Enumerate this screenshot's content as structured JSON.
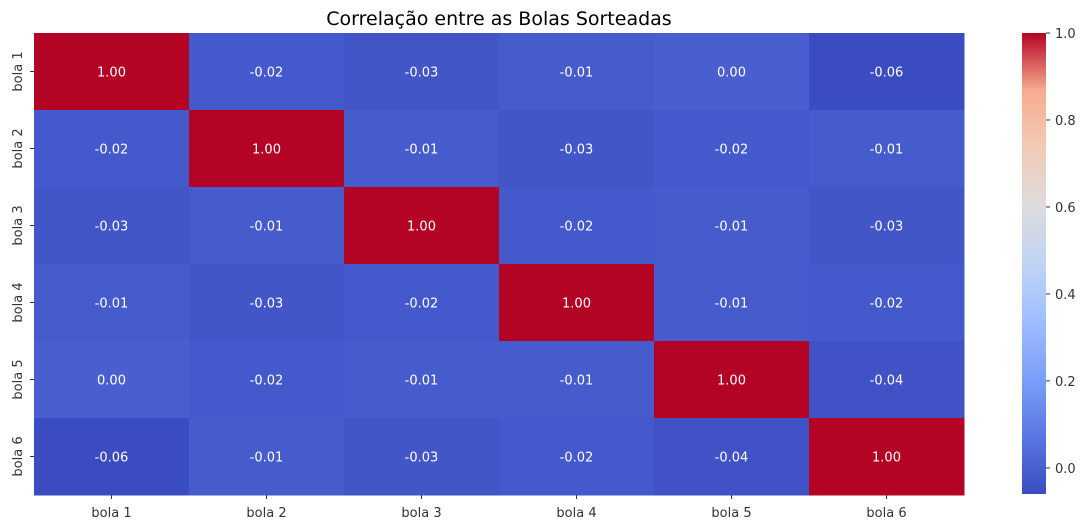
{
  "chart_data": {
    "type": "heatmap",
    "title": "Correlação entre as Bolas Sorteadas",
    "xlabel": "",
    "ylabel": "",
    "x_categories": [
      "bola 1",
      "bola 2",
      "bola 3",
      "bola 4",
      "bola 5",
      "bola 6"
    ],
    "y_categories": [
      "bola 1",
      "bola 2",
      "bola 3",
      "bola 4",
      "bola 5",
      "bola 6"
    ],
    "values": [
      [
        1.0,
        -0.02,
        -0.03,
        -0.01,
        -0.0,
        -0.06
      ],
      [
        -0.02,
        1.0,
        -0.01,
        -0.03,
        -0.02,
        -0.01
      ],
      [
        -0.03,
        -0.01,
        1.0,
        -0.02,
        -0.01,
        -0.03
      ],
      [
        -0.01,
        -0.03,
        -0.02,
        1.0,
        -0.01,
        -0.02
      ],
      [
        -0.0,
        -0.02,
        -0.01,
        -0.01,
        1.0,
        -0.04
      ],
      [
        -0.06,
        -0.01,
        -0.03,
        -0.02,
        -0.04,
        1.0
      ]
    ],
    "annotation_format": "0.00",
    "colormap": "coolwarm",
    "vmin": -0.06,
    "vmax": 1.0,
    "colorbar_ticks": [
      "1.0",
      "0.8",
      "0.6",
      "0.4",
      "0.2",
      "0.0"
    ],
    "colorbar_tick_values": [
      1.0,
      0.8,
      0.6,
      0.4,
      0.2,
      0.0
    ],
    "grid": false,
    "legend": "colorbar-right"
  }
}
